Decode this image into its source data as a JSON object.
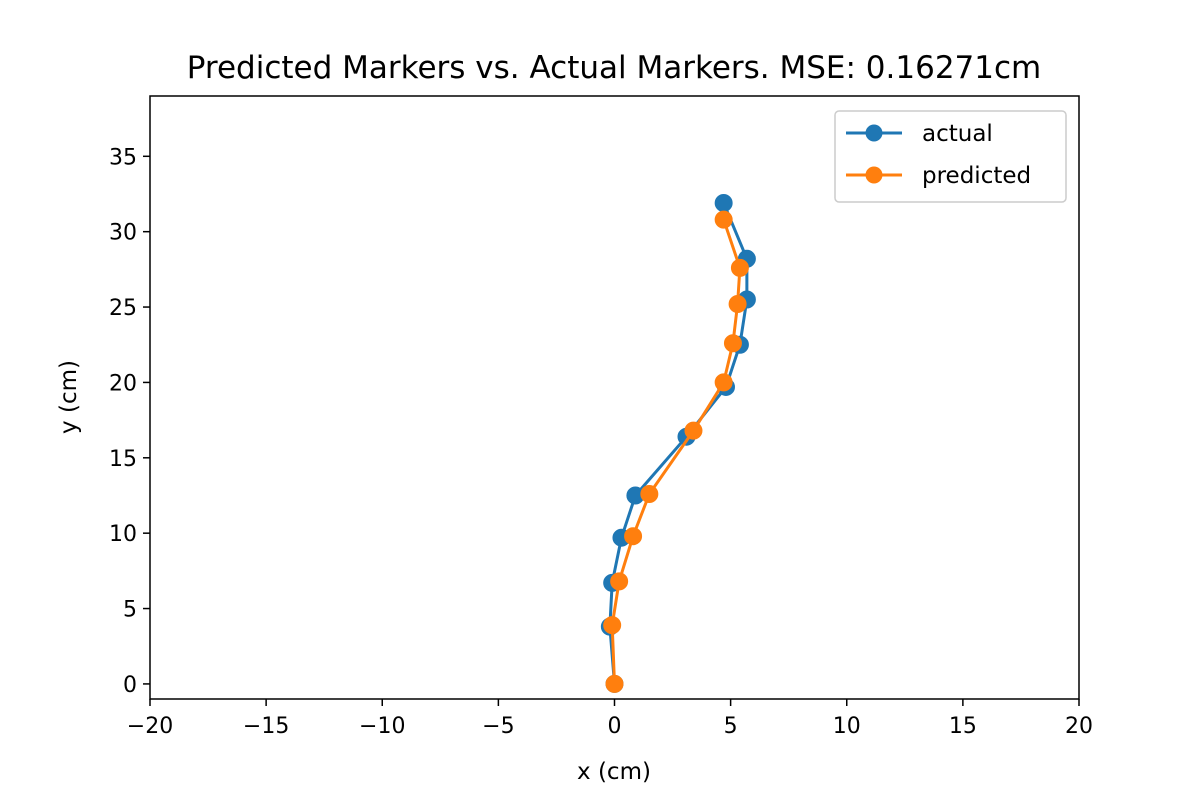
{
  "chart_data": {
    "type": "line",
    "title": "Predicted Markers vs. Actual Markers. MSE: 0.16271cm",
    "xlabel": "x (cm)",
    "ylabel": "y (cm)",
    "xlim": [
      -20,
      20
    ],
    "ylim": [
      -1,
      39
    ],
    "xticks": [
      -20,
      -15,
      -10,
      -5,
      0,
      5,
      10,
      15,
      20
    ],
    "yticks": [
      0,
      5,
      10,
      15,
      20,
      25,
      30,
      35
    ],
    "xtick_labels": [
      "−20",
      "−15",
      "−10",
      "−5",
      "0",
      "5",
      "10",
      "15",
      "20"
    ],
    "ytick_labels": [
      "0",
      "5",
      "10",
      "15",
      "20",
      "25",
      "30",
      "35"
    ],
    "grid": false,
    "legend_position": "top-right",
    "series": [
      {
        "name": "actual",
        "color": "#1f77b4",
        "marker": "circle",
        "x": [
          0.0,
          -0.2,
          -0.1,
          0.3,
          0.9,
          3.1,
          4.8,
          5.4,
          5.7,
          5.7,
          4.7
        ],
        "y": [
          0.0,
          3.8,
          6.7,
          9.7,
          12.5,
          16.4,
          19.7,
          22.5,
          25.5,
          28.2,
          31.9
        ]
      },
      {
        "name": "predicted",
        "color": "#ff7f0e",
        "marker": "circle",
        "x": [
          0.0,
          -0.1,
          0.2,
          0.8,
          1.5,
          3.4,
          4.7,
          5.1,
          5.3,
          5.4,
          4.7
        ],
        "y": [
          0.0,
          3.9,
          6.8,
          9.8,
          12.6,
          16.8,
          20.0,
          22.6,
          25.2,
          27.6,
          30.8
        ]
      }
    ]
  }
}
